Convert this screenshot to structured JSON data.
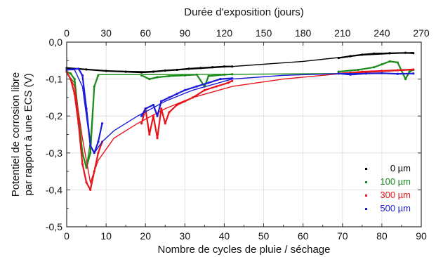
{
  "chart_data": {
    "type": "line",
    "xlabel": "Nombre de cycles de pluie / séchage",
    "x2label": "Durée d'exposition (jours)",
    "ylabel_line1": "Potentiel de corrosion libre",
    "ylabel_line2": "par rapport à une ECS (V)",
    "xlim": [
      0,
      90
    ],
    "x2lim": [
      0,
      270
    ],
    "ylim": [
      -0.5,
      0.0
    ],
    "xticks": [
      "0",
      "10",
      "20",
      "30",
      "40",
      "50",
      "60",
      "70",
      "80",
      "90"
    ],
    "x2ticks": [
      "0",
      "30",
      "60",
      "90",
      "120",
      "150",
      "180",
      "210",
      "240",
      "270"
    ],
    "yticks": [
      "0,0",
      "-0,1",
      "-0,2",
      "-0,3",
      "-0,4",
      "-0,5"
    ],
    "grid": true,
    "legend_position": "bottom-right",
    "series": [
      {
        "name": "0 µm",
        "color": "#000000",
        "points": [
          [
            0,
            -0.07
          ],
          [
            5,
            -0.074
          ],
          [
            10,
            -0.078
          ],
          [
            15,
            -0.08
          ],
          [
            19,
            -0.082
          ],
          [
            22,
            -0.08
          ],
          [
            25,
            -0.077
          ],
          [
            28,
            -0.075
          ],
          [
            31,
            -0.072
          ],
          [
            34,
            -0.07
          ],
          [
            37,
            -0.068
          ],
          [
            40,
            -0.066
          ],
          [
            42,
            -0.066
          ],
          [
            69,
            -0.043
          ],
          [
            72,
            -0.038
          ],
          [
            75,
            -0.034
          ],
          [
            78,
            -0.031
          ],
          [
            82,
            -0.03
          ],
          [
            86,
            -0.029
          ],
          [
            88,
            -0.03
          ]
        ],
        "fit": [
          [
            0,
            -0.07
          ],
          [
            10,
            -0.078
          ],
          [
            20,
            -0.08
          ],
          [
            30,
            -0.074
          ],
          [
            42,
            -0.066
          ],
          [
            60,
            -0.052
          ],
          [
            75,
            -0.035
          ],
          [
            88,
            -0.028
          ]
        ]
      },
      {
        "name": "100 µm",
        "color": "#1a8a1a",
        "points": [
          [
            0,
            -0.08
          ],
          [
            1,
            -0.085
          ],
          [
            2,
            -0.1
          ],
          [
            3,
            -0.2
          ],
          [
            4,
            -0.3
          ],
          [
            5,
            -0.34
          ],
          [
            6,
            -0.3
          ],
          [
            7,
            -0.12
          ],
          [
            8,
            -0.09
          ],
          [
            19,
            -0.09
          ],
          [
            21,
            -0.1
          ],
          [
            23,
            -0.095
          ],
          [
            26,
            -0.092
          ],
          [
            30,
            -0.09
          ],
          [
            33,
            -0.088
          ],
          [
            35,
            -0.12
          ],
          [
            36,
            -0.092
          ],
          [
            40,
            -0.088
          ],
          [
            42,
            -0.087
          ],
          [
            69,
            -0.08
          ],
          [
            74,
            -0.075
          ],
          [
            78,
            -0.068
          ],
          [
            80,
            -0.06
          ],
          [
            82,
            -0.052
          ],
          [
            84,
            -0.055
          ],
          [
            86,
            -0.1
          ],
          [
            87,
            -0.08
          ],
          [
            88,
            -0.075
          ]
        ],
        "fit": [
          [
            0,
            -0.085
          ],
          [
            2,
            -0.11
          ],
          [
            3,
            -0.2
          ],
          [
            4,
            -0.3
          ],
          [
            5,
            -0.34
          ],
          [
            6,
            -0.27
          ],
          [
            7,
            -0.12
          ],
          [
            8,
            -0.088
          ],
          [
            20,
            -0.088
          ],
          [
            42,
            -0.087
          ],
          [
            70,
            -0.085
          ],
          [
            88,
            -0.085
          ]
        ]
      },
      {
        "name": "300 µm",
        "color": "#e8141c",
        "points": [
          [
            0,
            -0.08
          ],
          [
            1,
            -0.1
          ],
          [
            2,
            -0.14
          ],
          [
            3,
            -0.22
          ],
          [
            4,
            -0.33
          ],
          [
            5,
            -0.38
          ],
          [
            6,
            -0.4
          ],
          [
            7,
            -0.35
          ],
          [
            8,
            -0.3
          ],
          [
            9,
            -0.27
          ],
          [
            19,
            -0.22
          ],
          [
            20,
            -0.18
          ],
          [
            21,
            -0.25
          ],
          [
            22,
            -0.2
          ],
          [
            23,
            -0.26
          ],
          [
            24,
            -0.18
          ],
          [
            25,
            -0.22
          ],
          [
            26,
            -0.19
          ],
          [
            28,
            -0.17
          ],
          [
            30,
            -0.16
          ],
          [
            32,
            -0.15
          ],
          [
            35,
            -0.13
          ],
          [
            38,
            -0.12
          ],
          [
            41,
            -0.11
          ],
          [
            42,
            -0.105
          ],
          [
            69,
            -0.085
          ],
          [
            72,
            -0.083
          ],
          [
            75,
            -0.08
          ],
          [
            80,
            -0.078
          ],
          [
            84,
            -0.076
          ],
          [
            88,
            -0.074
          ]
        ],
        "fit": [
          [
            0,
            -0.08
          ],
          [
            2,
            -0.12
          ],
          [
            4,
            -0.26
          ],
          [
            6,
            -0.38
          ],
          [
            8,
            -0.32
          ],
          [
            12,
            -0.26
          ],
          [
            18,
            -0.22
          ],
          [
            25,
            -0.18
          ],
          [
            32,
            -0.15
          ],
          [
            42,
            -0.12
          ],
          [
            55,
            -0.1
          ],
          [
            70,
            -0.085
          ],
          [
            88,
            -0.075
          ]
        ]
      },
      {
        "name": "500 µm",
        "color": "#1c1cd8",
        "points": [
          [
            0,
            -0.075
          ],
          [
            3,
            -0.072
          ],
          [
            4,
            -0.09
          ],
          [
            5,
            -0.18
          ],
          [
            6,
            -0.28
          ],
          [
            7,
            -0.3
          ],
          [
            8,
            -0.27
          ],
          [
            9,
            -0.22
          ],
          [
            19,
            -0.2
          ],
          [
            20,
            -0.18
          ],
          [
            22,
            -0.17
          ],
          [
            23,
            -0.2
          ],
          [
            24,
            -0.16
          ],
          [
            26,
            -0.15
          ],
          [
            28,
            -0.14
          ],
          [
            30,
            -0.13
          ],
          [
            33,
            -0.12
          ],
          [
            36,
            -0.11
          ],
          [
            39,
            -0.1
          ],
          [
            42,
            -0.098
          ],
          [
            69,
            -0.085
          ],
          [
            72,
            -0.088
          ],
          [
            76,
            -0.085
          ],
          [
            80,
            -0.084
          ],
          [
            84,
            -0.086
          ],
          [
            88,
            -0.085
          ]
        ],
        "fit": [
          [
            0,
            -0.075
          ],
          [
            2,
            -0.075
          ],
          [
            4,
            -0.12
          ],
          [
            5,
            -0.2
          ],
          [
            6,
            -0.28
          ],
          [
            7,
            -0.3
          ],
          [
            9,
            -0.27
          ],
          [
            12,
            -0.24
          ],
          [
            18,
            -0.2
          ],
          [
            25,
            -0.16
          ],
          [
            32,
            -0.13
          ],
          [
            42,
            -0.1
          ],
          [
            55,
            -0.09
          ],
          [
            70,
            -0.085
          ],
          [
            88,
            -0.085
          ]
        ]
      }
    ]
  }
}
